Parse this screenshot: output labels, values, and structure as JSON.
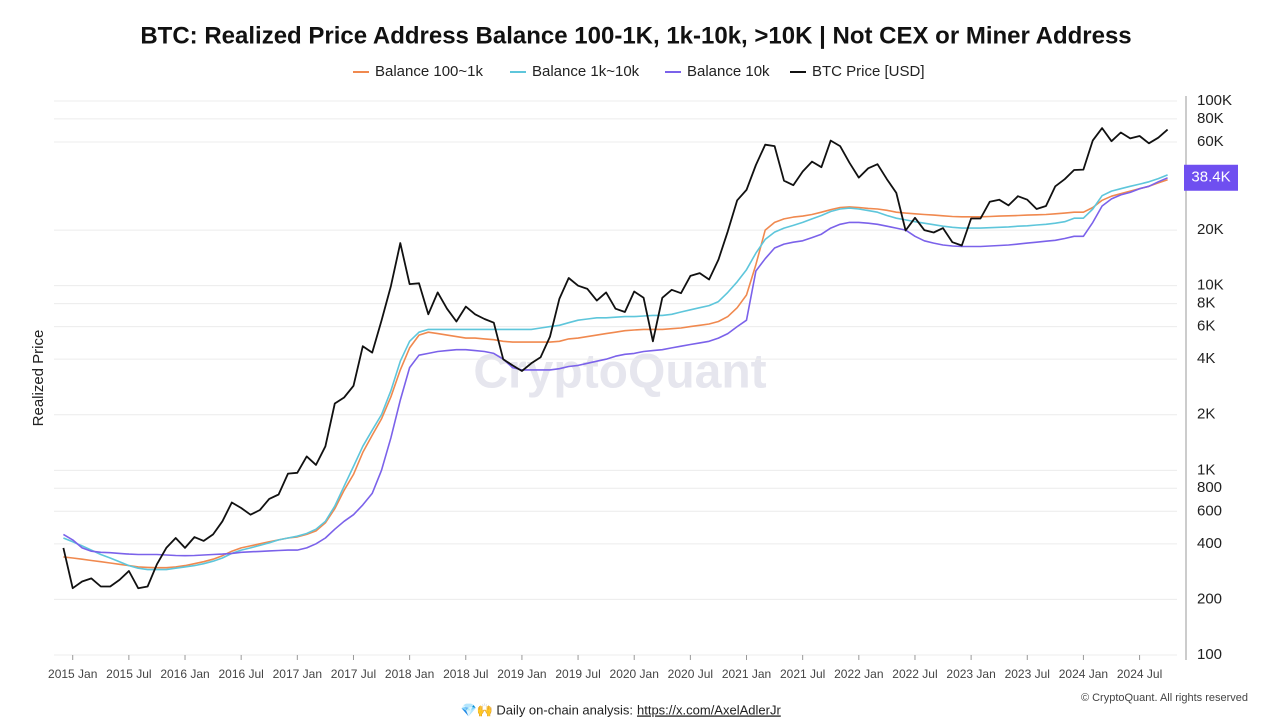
{
  "chart_data": {
    "type": "line",
    "title": "BTC: Realized Price Address Balance 100-1K, 1k-10k, >10K | Not CEX or Miner Address",
    "y_label": "Realized Price",
    "log_y": true,
    "grid": true,
    "legend": "top",
    "xlim": [
      "2014-11",
      "2024-11"
    ],
    "xticks": [
      {
        "value": "2015-01",
        "label": "2015 Jan"
      },
      {
        "value": "2015-07",
        "label": "2015 Jul"
      },
      {
        "value": "2016-01",
        "label": "2016 Jan"
      },
      {
        "value": "2016-07",
        "label": "2016 Jul"
      },
      {
        "value": "2017-01",
        "label": "2017 Jan"
      },
      {
        "value": "2017-07",
        "label": "2017 Jul"
      },
      {
        "value": "2018-01",
        "label": "2018 Jan"
      },
      {
        "value": "2018-07",
        "label": "2018 Jul"
      },
      {
        "value": "2019-01",
        "label": "2019 Jan"
      },
      {
        "value": "2019-07",
        "label": "2019 Jul"
      },
      {
        "value": "2020-01",
        "label": "2020 Jan"
      },
      {
        "value": "2020-07",
        "label": "2020 Jul"
      },
      {
        "value": "2021-01",
        "label": "2021 Jan"
      },
      {
        "value": "2021-07",
        "label": "2021 Jul"
      },
      {
        "value": "2022-01",
        "label": "2022 Jan"
      },
      {
        "value": "2022-07",
        "label": "2022 Jul"
      },
      {
        "value": "2023-01",
        "label": "2023 Jan"
      },
      {
        "value": "2023-07",
        "label": "2023 Jul"
      },
      {
        "value": "2024-01",
        "label": "2024 Jan"
      },
      {
        "value": "2024-07",
        "label": "2024 Jul"
      }
    ],
    "ylim": [
      100,
      100000
    ],
    "yticks": [
      100,
      200,
      400,
      600,
      800,
      {
        "value": 1000,
        "label": "1K"
      },
      {
        "value": 2000,
        "label": "2K"
      },
      {
        "value": 4000,
        "label": "4K"
      },
      {
        "value": 6000,
        "label": "6K"
      },
      {
        "value": 8000,
        "label": "8K"
      },
      {
        "value": 10000,
        "label": "10K"
      },
      {
        "value": 20000,
        "label": "20K"
      },
      {
        "value": 60000,
        "label": "60K"
      },
      {
        "value": 80000,
        "label": "80K"
      },
      {
        "value": 100000,
        "label": "100K"
      }
    ],
    "x": [
      "2014-12",
      "2015-01",
      "2015-02",
      "2015-03",
      "2015-04",
      "2015-05",
      "2015-06",
      "2015-07",
      "2015-08",
      "2015-09",
      "2015-10",
      "2015-11",
      "2015-12",
      "2016-01",
      "2016-02",
      "2016-03",
      "2016-04",
      "2016-05",
      "2016-06",
      "2016-07",
      "2016-08",
      "2016-09",
      "2016-10",
      "2016-11",
      "2016-12",
      "2017-01",
      "2017-02",
      "2017-03",
      "2017-04",
      "2017-05",
      "2017-06",
      "2017-07",
      "2017-08",
      "2017-09",
      "2017-10",
      "2017-11",
      "2017-12",
      "2018-01",
      "2018-02",
      "2018-03",
      "2018-04",
      "2018-05",
      "2018-06",
      "2018-07",
      "2018-08",
      "2018-09",
      "2018-10",
      "2018-11",
      "2018-12",
      "2019-01",
      "2019-02",
      "2019-03",
      "2019-04",
      "2019-05",
      "2019-06",
      "2019-07",
      "2019-08",
      "2019-09",
      "2019-10",
      "2019-11",
      "2019-12",
      "2020-01",
      "2020-02",
      "2020-03",
      "2020-04",
      "2020-05",
      "2020-06",
      "2020-07",
      "2020-08",
      "2020-09",
      "2020-10",
      "2020-11",
      "2020-12",
      "2021-01",
      "2021-02",
      "2021-03",
      "2021-04",
      "2021-05",
      "2021-06",
      "2021-07",
      "2021-08",
      "2021-09",
      "2021-10",
      "2021-11",
      "2021-12",
      "2022-01",
      "2022-02",
      "2022-03",
      "2022-04",
      "2022-05",
      "2022-06",
      "2022-07",
      "2022-08",
      "2022-09",
      "2022-10",
      "2022-11",
      "2022-12",
      "2023-01",
      "2023-02",
      "2023-03",
      "2023-04",
      "2023-05",
      "2023-06",
      "2023-07",
      "2023-08",
      "2023-09",
      "2023-10",
      "2023-11",
      "2023-12",
      "2024-01",
      "2024-02",
      "2024-03",
      "2024-04",
      "2024-05",
      "2024-06",
      "2024-07",
      "2024-08",
      "2024-09",
      "2024-10"
    ],
    "series": [
      {
        "name": "Balance 100~1k",
        "color": "#f0894f",
        "values": [
          340,
          335,
          330,
          325,
          320,
          315,
          310,
          305,
          300,
          298,
          297,
          297,
          300,
          305,
          312,
          320,
          330,
          345,
          365,
          380,
          390,
          400,
          410,
          420,
          430,
          436,
          450,
          470,
          520,
          620,
          780,
          950,
          1250,
          1550,
          1900,
          2500,
          3500,
          4600,
          5400,
          5600,
          5500,
          5400,
          5300,
          5200,
          5200,
          5150,
          5100,
          5000,
          4950,
          4950,
          4950,
          4950,
          4950,
          5000,
          5150,
          5200,
          5300,
          5400,
          5500,
          5600,
          5700,
          5750,
          5800,
          5800,
          5800,
          5850,
          5900,
          6000,
          6100,
          6200,
          6400,
          6800,
          7600,
          8900,
          13000,
          20000,
          22000,
          23000,
          23500,
          23800,
          24300,
          25000,
          25800,
          26500,
          26700,
          26500,
          26200,
          26000,
          25600,
          25000,
          24700,
          24500,
          24300,
          24100,
          23900,
          23700,
          23600,
          23600,
          23600,
          23700,
          23800,
          23900,
          24000,
          24100,
          24200,
          24300,
          24500,
          24700,
          25000,
          25000,
          26500,
          29000,
          30500,
          31500,
          32500,
          33500,
          34500,
          36000,
          37500
        ]
      },
      {
        "name": "Balance 1k~10k",
        "color": "#5ec6db",
        "values": [
          430,
          410,
          390,
          370,
          350,
          335,
          320,
          305,
          295,
          290,
          290,
          290,
          295,
          300,
          305,
          312,
          322,
          335,
          355,
          370,
          380,
          392,
          405,
          420,
          430,
          440,
          455,
          480,
          530,
          640,
          820,
          1050,
          1350,
          1650,
          2000,
          2700,
          3900,
          5000,
          5600,
          5800,
          5800,
          5800,
          5800,
          5800,
          5800,
          5800,
          5800,
          5800,
          5800,
          5800,
          5800,
          5900,
          6000,
          6100,
          6300,
          6500,
          6600,
          6700,
          6700,
          6750,
          6800,
          6800,
          6850,
          6900,
          6900,
          7000,
          7200,
          7400,
          7600,
          7800,
          8200,
          9200,
          10500,
          12200,
          15000,
          17800,
          19500,
          20500,
          21200,
          22000,
          23000,
          24000,
          25200,
          26000,
          26300,
          26000,
          25500,
          25000,
          24000,
          23200,
          22700,
          22200,
          21800,
          21400,
          21000,
          20700,
          20500,
          20500,
          20500,
          20600,
          20700,
          20800,
          21000,
          21100,
          21300,
          21500,
          21800,
          22200,
          23200,
          23200,
          26000,
          30700,
          32500,
          33500,
          34500,
          35500,
          36500,
          38000,
          39800
        ]
      },
      {
        "name": "Balance 10k",
        "color": "#7b62ea",
        "values": [
          450,
          420,
          380,
          365,
          360,
          358,
          355,
          352,
          350,
          350,
          350,
          348,
          346,
          345,
          346,
          348,
          350,
          352,
          355,
          360,
          362,
          364,
          366,
          368,
          370,
          370,
          380,
          400,
          430,
          480,
          530,
          575,
          650,
          750,
          1000,
          1500,
          2400,
          3600,
          4200,
          4300,
          4400,
          4450,
          4500,
          4500,
          4450,
          4400,
          4300,
          4000,
          3600,
          3500,
          3500,
          3500,
          3500,
          3550,
          3650,
          3700,
          3800,
          3900,
          4000,
          4150,
          4250,
          4300,
          4400,
          4450,
          4500,
          4600,
          4700,
          4800,
          4900,
          5000,
          5200,
          5500,
          6000,
          6500,
          12000,
          14000,
          16000,
          16800,
          17200,
          17500,
          18200,
          19000,
          20500,
          21500,
          22000,
          22000,
          21800,
          21500,
          21000,
          20500,
          20000,
          18500,
          17500,
          17000,
          16600,
          16400,
          16300,
          16300,
          16300,
          16400,
          16500,
          16600,
          16800,
          17000,
          17200,
          17400,
          17600,
          18000,
          18500,
          18500,
          22000,
          27000,
          29500,
          31000,
          32000,
          33500,
          34500,
          36500,
          38400
        ]
      },
      {
        "name": "BTC Price [USD]",
        "color": "#111111",
        "values": [
          380,
          230,
          250,
          260,
          235,
          235,
          255,
          285,
          230,
          235,
          310,
          380,
          430,
          380,
          435,
          415,
          450,
          530,
          670,
          625,
          575,
          610,
          700,
          740,
          960,
          970,
          1190,
          1070,
          1350,
          2300,
          2480,
          2870,
          4700,
          4340,
          6470,
          9950,
          17000,
          10200,
          10300,
          7000,
          9200,
          7500,
          6400,
          7700,
          7000,
          6600,
          6300,
          4000,
          3700,
          3450,
          3800,
          4100,
          5300,
          8500,
          11000,
          10000,
          9600,
          8300,
          9200,
          7500,
          7200,
          9300,
          8600,
          5000,
          8600,
          9500,
          9100,
          11300,
          11700,
          10800,
          13800,
          19700,
          29000,
          33000,
          45000,
          58000,
          57000,
          37000,
          35000,
          41500,
          47000,
          43800,
          61000,
          57000,
          46300,
          38500,
          43200,
          45500,
          37700,
          31800,
          19900,
          23300,
          20000,
          19400,
          20500,
          17200,
          16500,
          23100,
          23100,
          28500,
          29200,
          27200,
          30500,
          29200,
          26000,
          27000,
          34500,
          37700,
          42300,
          42500,
          61200,
          71300,
          60600,
          67500,
          62700,
          64600,
          59000,
          63300,
          70000
        ]
      }
    ],
    "last_value": {
      "value": 38400,
      "label": "38.4K",
      "color": "#6f4ff0"
    },
    "watermark": "CryptoQuant",
    "footer": "💎🙌 Daily on-chain analysis:",
    "footer_link": "https://x.com/AxelAdlerJr",
    "copyright": "© CryptoQuant. All rights reserved"
  }
}
